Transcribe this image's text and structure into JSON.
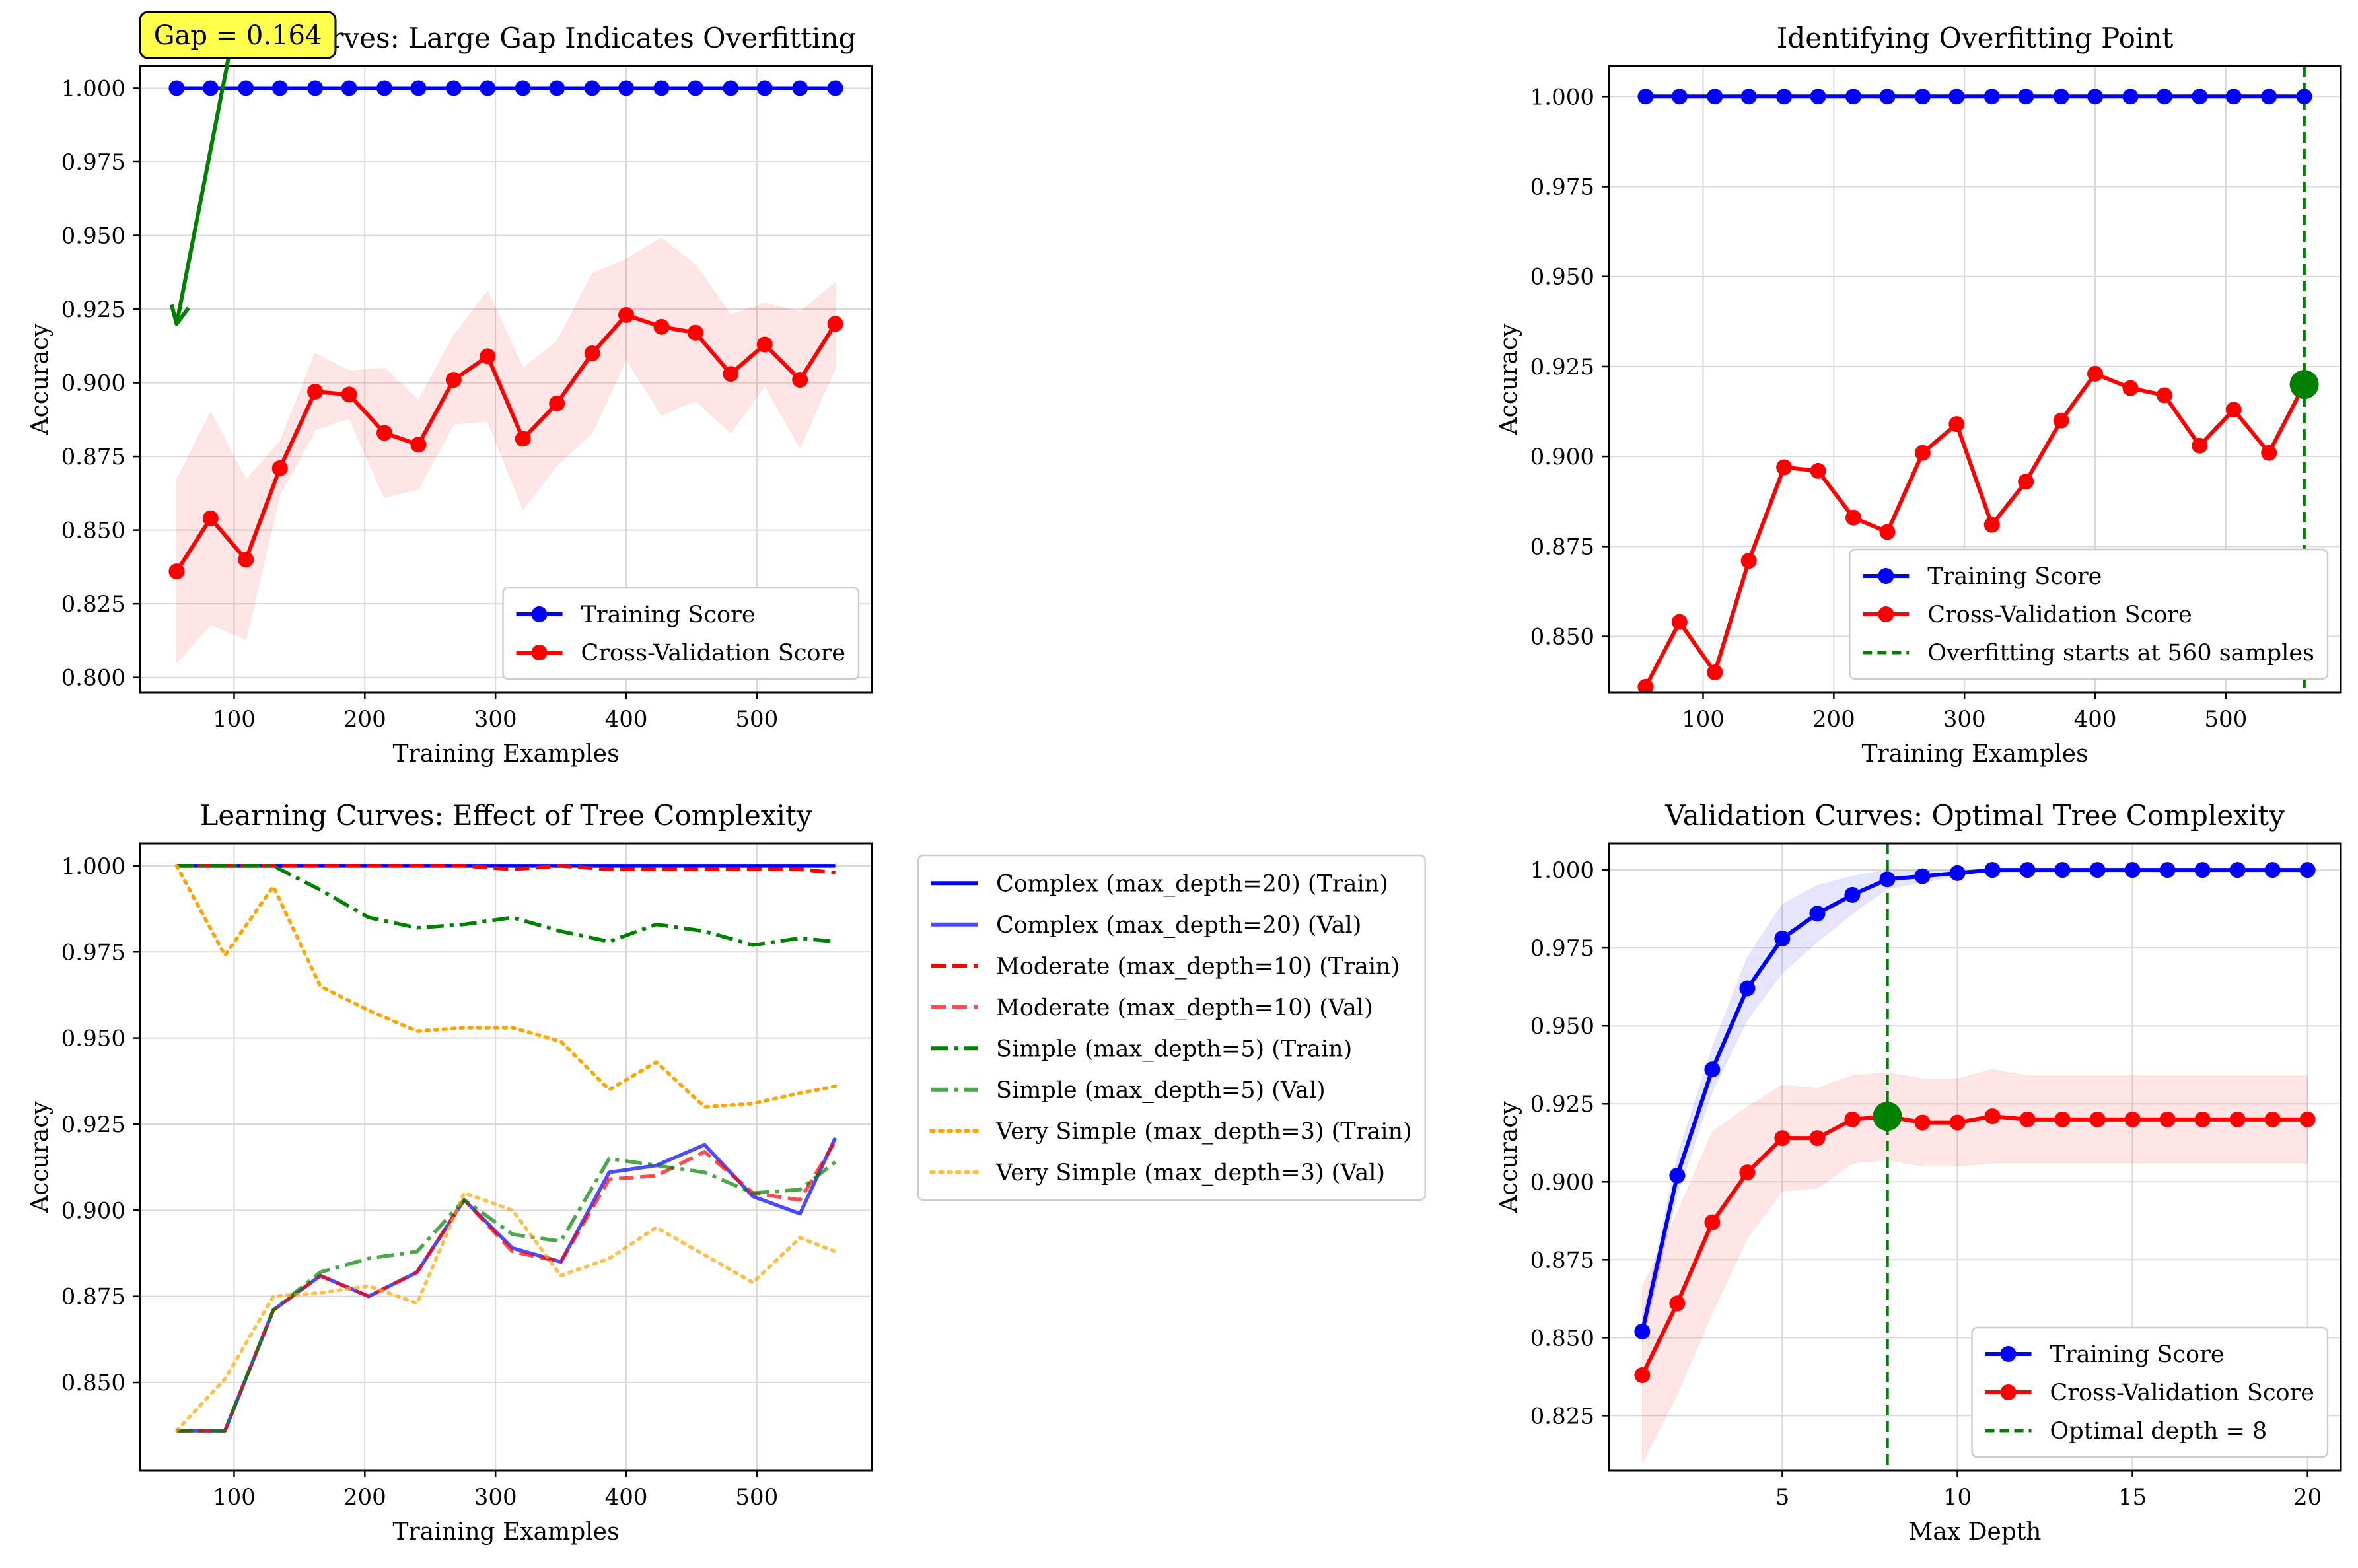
{
  "colors": {
    "train": "#0000ff",
    "val": "#ff0000",
    "marker_green": "#008000",
    "orange": "#ffa500",
    "annot_fill": "#ffff4d",
    "grid": "#d9d9d9"
  },
  "chart_data": [
    {
      "type": "line",
      "title": "Learning Curves: Large Gap Indicates Overfitting",
      "xlabel": "Training Examples",
      "ylabel": "Accuracy",
      "xlim": [
        28,
        588
      ],
      "ylim": [
        0.795,
        1.0075
      ],
      "xticks": [
        100,
        200,
        300,
        400,
        500
      ],
      "yticks": [
        0.8,
        0.825,
        0.85,
        0.875,
        0.9,
        0.925,
        0.95,
        0.975,
        1.0
      ],
      "ytick_labels": [
        "0.800",
        "0.825",
        "0.850",
        "0.875",
        "0.900",
        "0.925",
        "0.950",
        "0.975",
        "1.000"
      ],
      "grid": true,
      "legend_position": "lower-right",
      "x": [
        56,
        82,
        109,
        135,
        162,
        188,
        215,
        241,
        268,
        294,
        321,
        347,
        374,
        400,
        427,
        453,
        480,
        506,
        533,
        560
      ],
      "series": [
        {
          "name": "Training Score",
          "values": [
            1,
            1,
            1,
            1,
            1,
            1,
            1,
            1,
            1,
            1,
            1,
            1,
            1,
            1,
            1,
            1,
            1,
            1,
            1,
            1
          ],
          "color": "#0000ff",
          "marker": "circle",
          "dash": "solid"
        },
        {
          "name": "Cross-Validation Score",
          "values": [
            0.836,
            0.854,
            0.84,
            0.871,
            0.897,
            0.896,
            0.883,
            0.879,
            0.901,
            0.909,
            0.881,
            0.893,
            0.91,
            0.923,
            0.919,
            0.917,
            0.903,
            0.913,
            0.901,
            0.92
          ],
          "color": "#ff0000",
          "marker": "circle",
          "dash": "solid",
          "band_lower": [
            0.805,
            0.818,
            0.813,
            0.862,
            0.884,
            0.888,
            0.861,
            0.864,
            0.886,
            0.887,
            0.857,
            0.872,
            0.883,
            0.908,
            0.889,
            0.894,
            0.883,
            0.899,
            0.878,
            0.905
          ],
          "band_upper": [
            0.867,
            0.89,
            0.867,
            0.88,
            0.91,
            0.904,
            0.905,
            0.894,
            0.916,
            0.931,
            0.905,
            0.914,
            0.937,
            0.942,
            0.949,
            0.94,
            0.923,
            0.927,
            0.924,
            0.934
          ]
        }
      ],
      "annotations": [
        {
          "text": "Gap = 0.164",
          "arrow_from": [
            100,
            1.02
          ],
          "arrow_to": [
            56,
            0.92
          ]
        }
      ]
    },
    {
      "type": "line",
      "title": "Identifying Overfitting Point",
      "xlabel": "Training Examples",
      "ylabel": "Accuracy",
      "xlim": [
        28,
        588
      ],
      "ylim": [
        0.8345,
        1.0085
      ],
      "xticks": [
        100,
        200,
        300,
        400,
        500
      ],
      "yticks": [
        0.85,
        0.875,
        0.9,
        0.925,
        0.95,
        0.975,
        1.0
      ],
      "ytick_labels": [
        "0.850",
        "0.875",
        "0.900",
        "0.925",
        "0.950",
        "0.975",
        "1.000"
      ],
      "grid": true,
      "legend_position": "lower-right",
      "x": [
        56,
        82,
        109,
        135,
        162,
        188,
        215,
        241,
        268,
        294,
        321,
        347,
        374,
        400,
        427,
        453,
        480,
        506,
        533,
        560
      ],
      "series": [
        {
          "name": "Training Score",
          "values": [
            1,
            1,
            1,
            1,
            1,
            1,
            1,
            1,
            1,
            1,
            1,
            1,
            1,
            1,
            1,
            1,
            1,
            1,
            1,
            1
          ],
          "color": "#0000ff",
          "marker": "circle",
          "dash": "solid"
        },
        {
          "name": "Cross-Validation Score",
          "values": [
            0.836,
            0.854,
            0.84,
            0.871,
            0.897,
            0.896,
            0.883,
            0.879,
            0.901,
            0.909,
            0.881,
            0.893,
            0.91,
            0.923,
            0.919,
            0.917,
            0.903,
            0.913,
            0.901,
            0.92
          ],
          "color": "#ff0000",
          "marker": "circle",
          "dash": "solid"
        }
      ],
      "vline": {
        "x": 560,
        "label": "Overfitting starts at 560 samples",
        "color": "#008000"
      },
      "highlight_point": {
        "x": 560,
        "y": 0.92
      }
    },
    {
      "type": "line",
      "title": "Learning Curves: Effect of Tree Complexity",
      "xlabel": "Training Examples",
      "ylabel": "Accuracy",
      "xlim": [
        28,
        588
      ],
      "ylim": [
        0.8245,
        1.0065
      ],
      "xticks": [
        100,
        200,
        300,
        400,
        500
      ],
      "yticks": [
        0.85,
        0.875,
        0.9,
        0.925,
        0.95,
        0.975,
        1.0
      ],
      "ytick_labels": [
        "0.850",
        "0.875",
        "0.900",
        "0.925",
        "0.950",
        "0.975",
        "1.000"
      ],
      "grid": true,
      "legend_position": "outside-right",
      "x": [
        56,
        93,
        130,
        166,
        203,
        240,
        276,
        313,
        350,
        387,
        423,
        460,
        497,
        533,
        560
      ],
      "series": [
        {
          "name": "Complex (max_depth=20) (Train)",
          "values": [
            1,
            1,
            1,
            1,
            1,
            1,
            1,
            1,
            1,
            1,
            1,
            1,
            1,
            1,
            1
          ],
          "color": "#0000ff",
          "dash": "solid",
          "opacity": 1.0
        },
        {
          "name": "Complex (max_depth=20) (Val)",
          "values": [
            0.836,
            0.836,
            0.871,
            0.881,
            0.875,
            0.882,
            0.903,
            0.889,
            0.885,
            0.911,
            0.913,
            0.919,
            0.904,
            0.899,
            0.921
          ],
          "color": "#0000ff",
          "dash": "solid",
          "opacity": 0.7
        },
        {
          "name": "Moderate (max_depth=10) (Train)",
          "values": [
            1,
            1,
            1,
            1,
            1,
            1,
            1,
            0.999,
            1,
            0.999,
            0.999,
            0.999,
            0.999,
            0.999,
            0.998
          ],
          "color": "#ff0000",
          "dash": "dashed",
          "opacity": 1.0
        },
        {
          "name": "Moderate (max_depth=10) (Val)",
          "values": [
            0.836,
            0.836,
            0.871,
            0.881,
            0.875,
            0.882,
            0.903,
            0.888,
            0.885,
            0.909,
            0.91,
            0.917,
            0.905,
            0.903,
            0.92
          ],
          "color": "#ff0000",
          "dash": "dashed",
          "opacity": 0.7
        },
        {
          "name": "Simple (max_depth=5) (Train)",
          "values": [
            1,
            1,
            1,
            0.993,
            0.985,
            0.982,
            0.983,
            0.985,
            0.981,
            0.978,
            0.983,
            0.981,
            0.977,
            0.979,
            0.978
          ],
          "color": "#008000",
          "dash": "dashdot",
          "opacity": 1.0
        },
        {
          "name": "Simple (max_depth=5) (Val)",
          "values": [
            0.836,
            0.836,
            0.871,
            0.882,
            0.886,
            0.888,
            0.903,
            0.893,
            0.891,
            0.915,
            0.913,
            0.911,
            0.905,
            0.906,
            0.914
          ],
          "color": "#008000",
          "dash": "dashdot",
          "opacity": 0.7
        },
        {
          "name": "Very Simple (max_depth=3) (Train)",
          "values": [
            1,
            0.974,
            0.994,
            0.965,
            0.958,
            0.952,
            0.953,
            0.953,
            0.949,
            0.935,
            0.943,
            0.93,
            0.931,
            0.934,
            0.936
          ],
          "color": "#ffa500",
          "dash": "dotted",
          "opacity": 1.0
        },
        {
          "name": "Very Simple (max_depth=3) (Val)",
          "values": [
            0.836,
            0.851,
            0.875,
            0.876,
            0.878,
            0.873,
            0.905,
            0.9,
            0.881,
            0.886,
            0.895,
            0.887,
            0.879,
            0.892,
            0.888
          ],
          "color": "#ffa500",
          "dash": "dotted",
          "opacity": 0.7
        }
      ]
    },
    {
      "type": "line",
      "title": "Validation Curves: Optimal Tree Complexity",
      "xlabel": "Max Depth",
      "ylabel": "Accuracy",
      "xlim": [
        0.05,
        20.95
      ],
      "ylim": [
        0.8075,
        1.0085
      ],
      "xticks": [
        5,
        10,
        15,
        20
      ],
      "yticks": [
        0.825,
        0.85,
        0.875,
        0.9,
        0.925,
        0.95,
        0.975,
        1.0
      ],
      "ytick_labels": [
        "0.825",
        "0.850",
        "0.875",
        "0.900",
        "0.925",
        "0.950",
        "0.975",
        "1.000"
      ],
      "grid": true,
      "legend_position": "lower-right",
      "x": [
        1,
        2,
        3,
        4,
        5,
        6,
        7,
        8,
        9,
        10,
        11,
        12,
        13,
        14,
        15,
        16,
        17,
        18,
        19,
        20
      ],
      "series": [
        {
          "name": "Training Score",
          "values": [
            0.852,
            0.902,
            0.936,
            0.962,
            0.978,
            0.986,
            0.992,
            0.997,
            0.998,
            0.999,
            1,
            1,
            1,
            1,
            1,
            1,
            1,
            1,
            1,
            1
          ],
          "color": "#0000ff",
          "marker": "circle",
          "dash": "solid",
          "band_lower": [
            0.848,
            0.896,
            0.929,
            0.952,
            0.967,
            0.977,
            0.986,
            0.994,
            0.996,
            0.998,
            1,
            1,
            1,
            1,
            1,
            1,
            1,
            1,
            1,
            1
          ],
          "band_upper": [
            0.856,
            0.908,
            0.943,
            0.972,
            0.989,
            0.995,
            0.998,
            1,
            1,
            1,
            1,
            1,
            1,
            1,
            1,
            1,
            1,
            1,
            1,
            1
          ]
        },
        {
          "name": "Cross-Validation Score",
          "values": [
            0.838,
            0.861,
            0.887,
            0.903,
            0.914,
            0.914,
            0.92,
            0.921,
            0.919,
            0.919,
            0.921,
            0.92,
            0.92,
            0.92,
            0.92,
            0.92,
            0.92,
            0.92,
            0.92,
            0.92
          ],
          "color": "#ff0000",
          "marker": "circle",
          "dash": "solid",
          "band_lower": [
            0.81,
            0.832,
            0.858,
            0.882,
            0.897,
            0.898,
            0.906,
            0.907,
            0.905,
            0.905,
            0.906,
            0.906,
            0.906,
            0.906,
            0.906,
            0.906,
            0.906,
            0.906,
            0.906,
            0.906
          ],
          "band_upper": [
            0.866,
            0.89,
            0.916,
            0.924,
            0.931,
            0.93,
            0.934,
            0.935,
            0.933,
            0.933,
            0.936,
            0.934,
            0.934,
            0.934,
            0.934,
            0.934,
            0.934,
            0.934,
            0.934,
            0.934
          ]
        }
      ],
      "vline": {
        "x": 8,
        "label": "Optimal depth = 8",
        "color": "#008000"
      },
      "highlight_point": {
        "x": 8,
        "y": 0.921
      }
    }
  ]
}
